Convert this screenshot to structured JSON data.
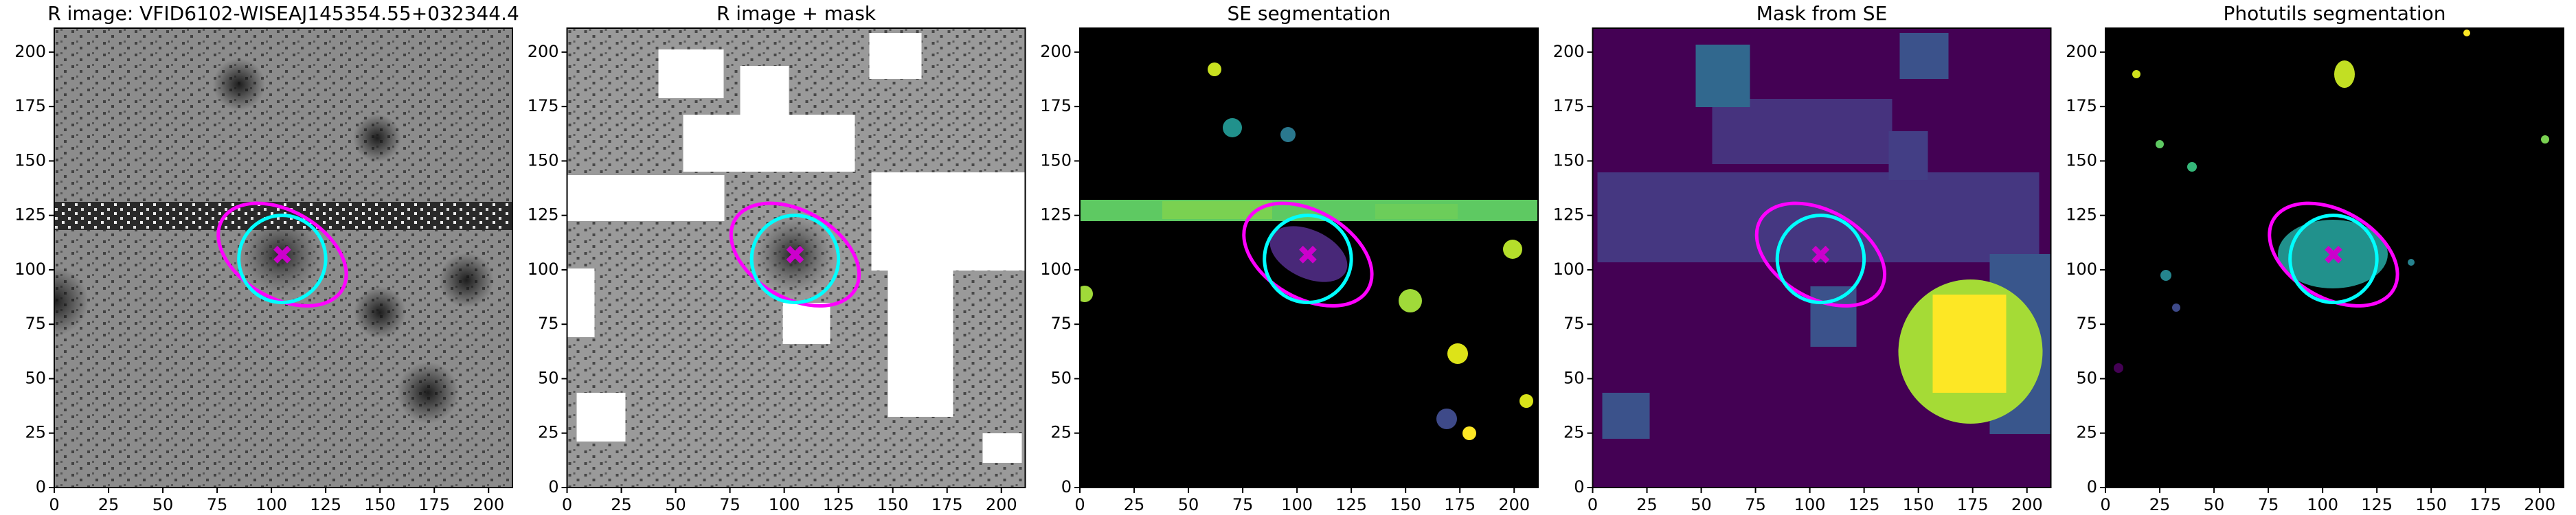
{
  "chart_data": [
    {
      "type": "image",
      "title": "R image: VFID6102-WISEAJ145354.55+032344.4",
      "xlim": [
        0,
        211
      ],
      "ylim": [
        0,
        211
      ],
      "xticks": [
        0,
        25,
        50,
        75,
        100,
        125,
        150,
        175,
        200
      ],
      "yticks": [
        0,
        25,
        50,
        75,
        100,
        125,
        150,
        175,
        200
      ],
      "ellipse": {
        "x": 105,
        "y": 107,
        "width": 64,
        "height": 40,
        "angle": -30,
        "color": "#ff00ff"
      },
      "circle": {
        "x": 105,
        "y": 105,
        "radius": 20,
        "color": "#00ffff"
      },
      "marker": {
        "x": 105,
        "y": 107,
        "color": "#cc00cc"
      }
    },
    {
      "type": "image",
      "title": "R image + mask",
      "xlim": [
        0,
        211
      ],
      "ylim": [
        0,
        211
      ],
      "xticks": [
        0,
        25,
        50,
        75,
        100,
        125,
        150,
        175,
        200
      ],
      "yticks": [
        0,
        25,
        50,
        75,
        100,
        125,
        150,
        175,
        200
      ],
      "ellipse": {
        "x": 105,
        "y": 107,
        "width": 64,
        "height": 40,
        "angle": -30,
        "color": "#ff00ff"
      },
      "circle": {
        "x": 105,
        "y": 105,
        "radius": 20,
        "color": "#00ffff"
      },
      "marker": {
        "x": 105,
        "y": 107,
        "color": "#cc00cc"
      }
    },
    {
      "type": "image",
      "title": "SE segmentation",
      "xlim": [
        0,
        211
      ],
      "ylim": [
        0,
        211
      ],
      "xticks": [
        0,
        25,
        50,
        75,
        100,
        125,
        150,
        175,
        200
      ],
      "yticks": [
        0,
        25,
        50,
        75,
        100,
        125,
        150,
        175,
        200
      ],
      "ellipse": {
        "x": 105,
        "y": 107,
        "width": 64,
        "height": 40,
        "angle": -30,
        "color": "#ff00ff"
      },
      "circle": {
        "x": 105,
        "y": 105,
        "radius": 20,
        "color": "#00ffff"
      },
      "marker": {
        "x": 105,
        "y": 107,
        "color": "#cc00cc"
      }
    },
    {
      "type": "image",
      "title": "Mask from SE",
      "xlim": [
        0,
        211
      ],
      "ylim": [
        0,
        211
      ],
      "xticks": [
        0,
        25,
        50,
        75,
        100,
        125,
        150,
        175,
        200
      ],
      "yticks": [
        0,
        25,
        50,
        75,
        100,
        125,
        150,
        175,
        200
      ],
      "ellipse": {
        "x": 105,
        "y": 107,
        "width": 64,
        "height": 40,
        "angle": -30,
        "color": "#ff00ff"
      },
      "circle": {
        "x": 105,
        "y": 105,
        "radius": 20,
        "color": "#00ffff"
      },
      "marker": {
        "x": 105,
        "y": 107,
        "color": "#cc00cc"
      }
    },
    {
      "type": "image",
      "title": "Photutils segmentation",
      "xlim": [
        0,
        211
      ],
      "ylim": [
        0,
        211
      ],
      "xticks": [
        0,
        25,
        50,
        75,
        100,
        125,
        150,
        175,
        200
      ],
      "yticks": [
        0,
        25,
        50,
        75,
        100,
        125,
        150,
        175,
        200
      ],
      "ellipse": {
        "x": 105,
        "y": 107,
        "width": 64,
        "height": 40,
        "angle": -30,
        "color": "#ff00ff"
      },
      "circle": {
        "x": 105,
        "y": 105,
        "radius": 20,
        "color": "#00ffff"
      },
      "marker": {
        "x": 105,
        "y": 107,
        "color": "#cc00cc"
      }
    }
  ]
}
